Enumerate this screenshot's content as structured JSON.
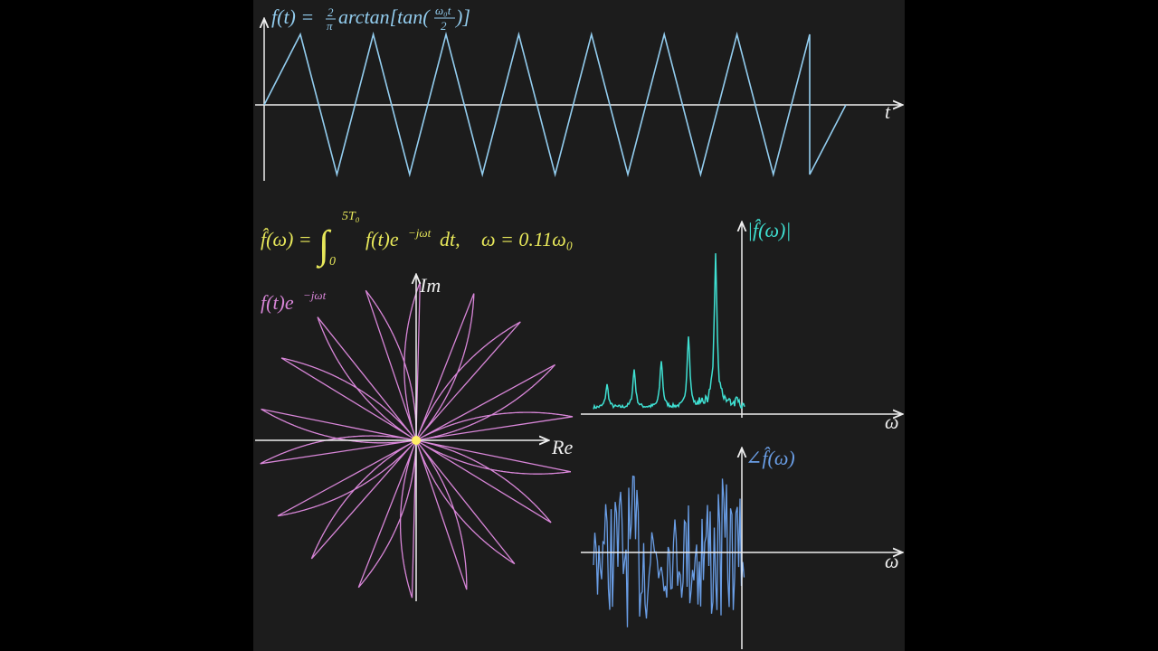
{
  "signal_panel": {
    "formula": {
      "lhs": "f(t) =",
      "frac_num": "2",
      "frac_den": "π",
      "func": "arctan[tan(",
      "arg_num": "ω₀t",
      "arg_den": "2",
      "close": ")]"
    },
    "axis_label": "t"
  },
  "transform_formula": {
    "lhs": "f̂(ω) =",
    "integral": "∫",
    "lower": "0",
    "upper": "5T₀",
    "integrand": "f(t)e",
    "exponent": "−jωt",
    "tail": "dt,",
    "freq": "ω = 0.11ω₀"
  },
  "polar_panel": {
    "label": "f(t)e",
    "label_exp": "−jωt",
    "im_label": "Im",
    "re_label": "Re"
  },
  "magnitude_panel": {
    "label": "|f̂(ω)|",
    "axis_label": "ω"
  },
  "phase_panel": {
    "label": "∠f̂(ω)",
    "axis_label": "ω"
  }
}
